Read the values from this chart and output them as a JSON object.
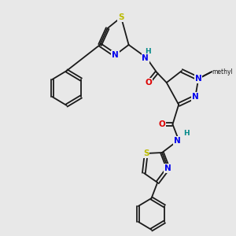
{
  "background_color": "#e8e8e8",
  "bond_color": "#1a1a1a",
  "atom_colors": {
    "N": "#0000ee",
    "O": "#dd0000",
    "S": "#bbbb00",
    "H": "#008888",
    "C": "#1a1a1a"
  },
  "figsize": [
    3.0,
    3.0
  ],
  "dpi": 100
}
